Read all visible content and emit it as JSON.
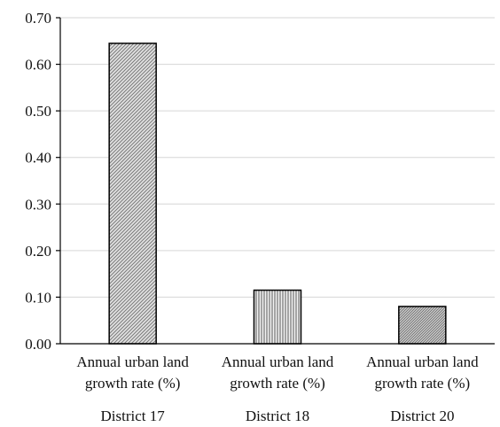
{
  "chart_data": {
    "type": "bar",
    "title": "",
    "xlabel": "",
    "ylabel": "",
    "ylim": [
      0,
      0.7
    ],
    "yticks": [
      "0.00",
      "0.10",
      "0.20",
      "0.30",
      "0.40",
      "0.50",
      "0.60",
      "0.70"
    ],
    "grid": true,
    "categories": [
      {
        "line1": "Annual urban land",
        "line2": "growth rate (%)",
        "district": "District 17"
      },
      {
        "line1": "Annual urban land",
        "line2": "growth rate (%)",
        "district": "District 18"
      },
      {
        "line1": "Annual urban land",
        "line2": "growth rate (%)",
        "district": "District 20"
      }
    ],
    "values": [
      0.645,
      0.115,
      0.08
    ],
    "bar_patterns": [
      "diagonal-hatch",
      "vertical-hatch",
      "dense-diagonal-hatch"
    ]
  }
}
